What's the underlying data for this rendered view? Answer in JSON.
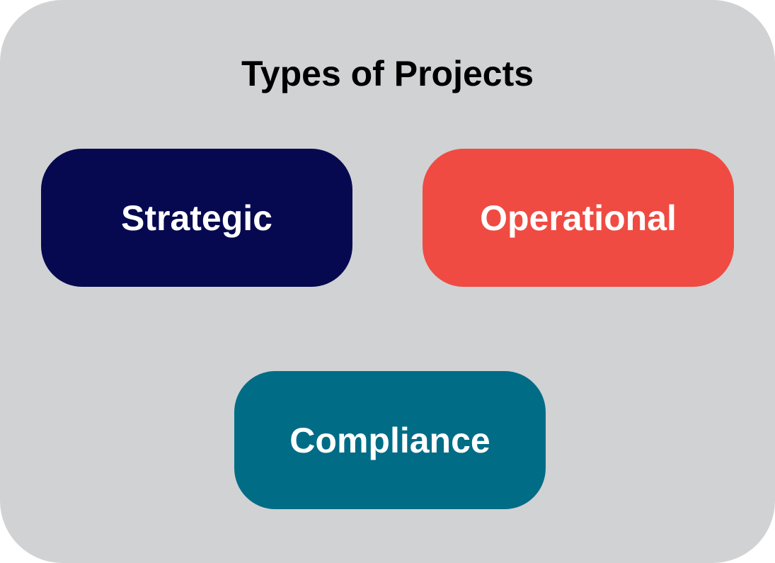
{
  "title": "Types of Projects",
  "categories": [
    {
      "label": "Strategic",
      "color": "#070950"
    },
    {
      "label": "Operational",
      "color": "#ef4b42"
    },
    {
      "label": "Compliance",
      "color": "#006c86"
    }
  ]
}
